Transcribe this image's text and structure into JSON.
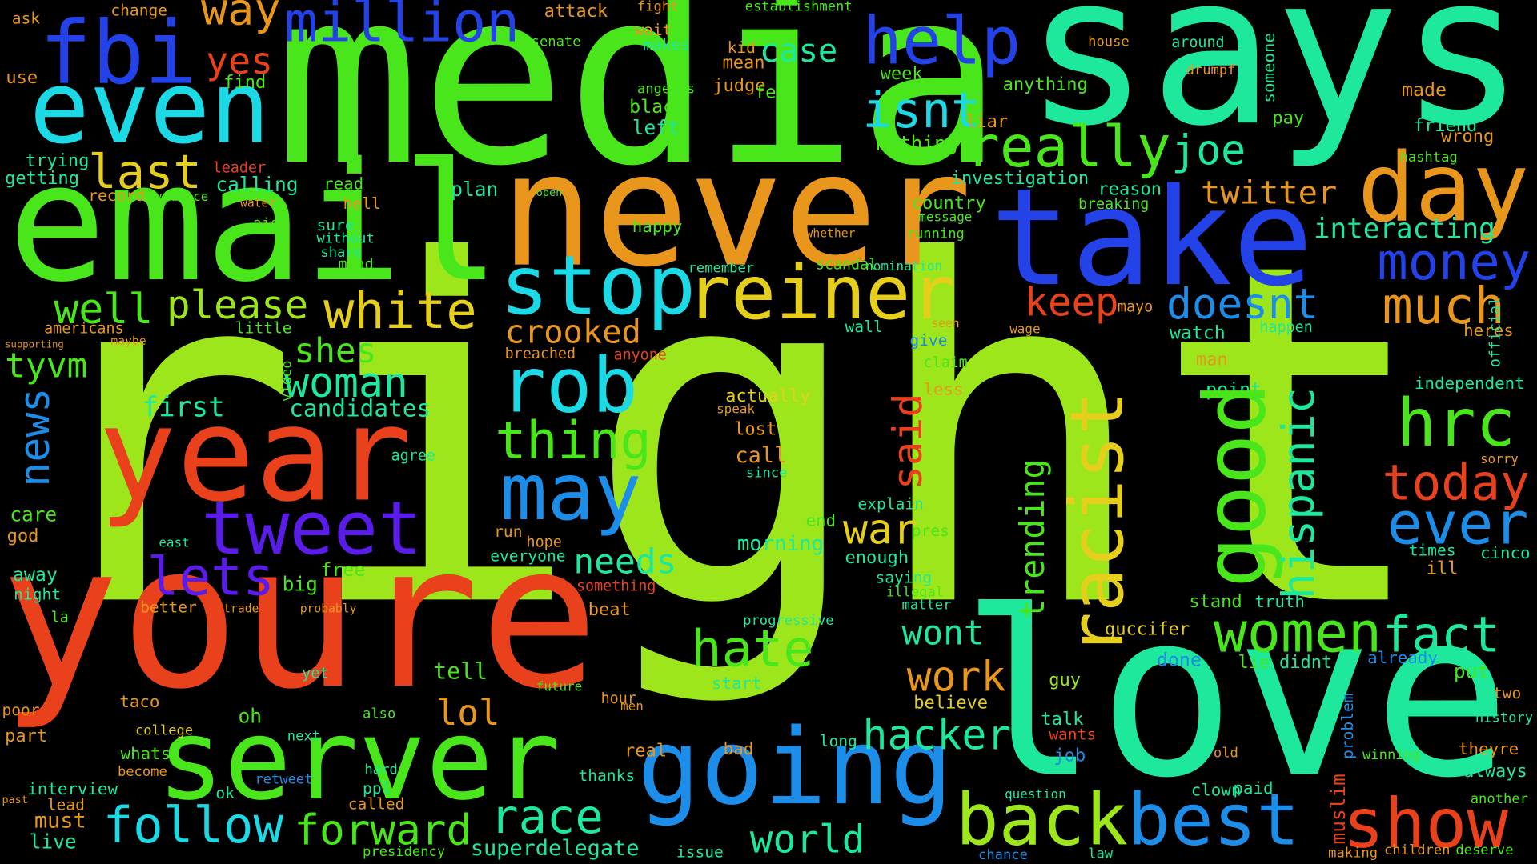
{
  "words": [
    "right",
    "youre",
    "media",
    "says",
    "email",
    "never",
    "love",
    "server",
    "year",
    "take",
    "going",
    "back",
    "best",
    "fbi",
    "even",
    "help",
    "day",
    "stop",
    "reiner",
    "rob",
    "may",
    "tweet",
    "lets",
    "thing",
    "hate",
    "work",
    "hacker",
    "follow",
    "forward",
    "race",
    "world",
    "show",
    "women",
    "fact",
    "today",
    "ever",
    "hrc",
    "money",
    "much",
    "really",
    "joe",
    "isnt",
    "million",
    "way",
    "yes",
    "last",
    "white",
    "please",
    "well",
    "shes",
    "woman",
    "crooked",
    "war",
    "needs",
    "lol",
    "doesnt",
    "keep",
    "twitter",
    "wont",
    "case",
    "interacting",
    "tyvm",
    "first",
    "candidates",
    "superdelegate",
    "investigation",
    "country",
    "running",
    "nomination",
    "remember",
    "plan",
    "read",
    "calling",
    "hell",
    "sure",
    "without",
    "share",
    "mind",
    "aide",
    "water",
    "record",
    "evidence",
    "getting",
    "trying",
    "find",
    "use",
    "ask",
    "change",
    "attack",
    "senate",
    "fight",
    "wait",
    "makes",
    "kid",
    "mean",
    "judge",
    "feel",
    "black",
    "left",
    "angeles",
    "week",
    "come",
    "anything",
    "liar",
    "nothing",
    "reason",
    "breaking",
    "made",
    "friend",
    "pay",
    "wrong",
    "hashtag",
    "house",
    "around",
    "drumpf",
    "establishment",
    "mayo",
    "happen",
    "watch",
    "man",
    "point",
    "heres",
    "independent",
    "sorry",
    "times",
    "ill",
    "cinco",
    "stand",
    "truth",
    "guccifer",
    "lie",
    "didnt",
    "already",
    "put",
    "done",
    "guy",
    "talk",
    "wants",
    "job",
    "theyre",
    "always",
    "two",
    "history",
    "winning",
    "old",
    "paid",
    "clown",
    "question",
    "children",
    "deserve",
    "another",
    "making",
    "law",
    "chance",
    "issue",
    "presidency",
    "must",
    "live",
    "lead",
    "interview",
    "past",
    "become",
    "whats",
    "college",
    "taco",
    "poor",
    "part",
    "oh",
    "also",
    "next",
    "called",
    "ppl",
    "ok",
    "hard",
    "retweet",
    "thanks",
    "real",
    "bad",
    "hour",
    "future",
    "start",
    "men",
    "tell",
    "yet",
    "beat",
    "something",
    "everyone",
    "hope",
    "run",
    "morning",
    "end",
    "explain",
    "enough",
    "saying",
    "illegal",
    "matter",
    "pres",
    "believe",
    "long",
    "progressive",
    "call",
    "lost",
    "actually",
    "speak",
    "since",
    "less",
    "give",
    "claim",
    "free",
    "big",
    "better",
    "trade",
    "probably",
    "care",
    "god",
    "away",
    "night",
    "la",
    "east",
    "agree",
    "little",
    "americans",
    "maybe",
    "leader",
    "happy",
    "open",
    "message",
    "whether",
    "scandal",
    "wall",
    "anyone",
    "breached",
    "seen",
    "wage",
    "supporting",
    "good",
    "racist",
    "hispanic",
    "trending",
    "said",
    "news",
    "muslim",
    "someone",
    "problem",
    "official",
    "video"
  ]
}
